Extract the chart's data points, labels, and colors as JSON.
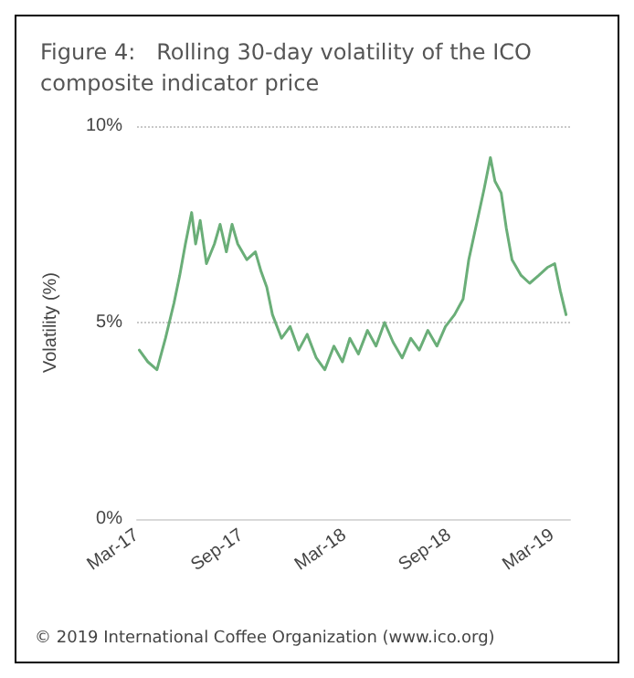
{
  "chart_data": {
    "type": "line",
    "title": "Figure 4:   Rolling 30-day volatility of the ICO composite indicator price",
    "ylabel": "Volatility (%)",
    "annotations": [
      "© 2019 International Coffee Organization (www.ico.org)"
    ],
    "series": [
      {
        "color": "#6aae78",
        "x": [
          "2017-03-05",
          "2017-03-20",
          "2017-04-05",
          "2017-04-20",
          "2017-05-05",
          "2017-05-15",
          "2017-05-25",
          "2017-06-05",
          "2017-06-12",
          "2017-06-20",
          "2017-07-01",
          "2017-07-15",
          "2017-07-25",
          "2017-08-05",
          "2017-08-15",
          "2017-08-25",
          "2017-09-10",
          "2017-09-25",
          "2017-10-05",
          "2017-10-15",
          "2017-10-25",
          "2017-11-10",
          "2017-11-25",
          "2017-12-10",
          "2017-12-25",
          "2018-01-10",
          "2018-01-25",
          "2018-02-10",
          "2018-02-25",
          "2018-03-10",
          "2018-03-25",
          "2018-04-10",
          "2018-04-25",
          "2018-05-10",
          "2018-05-25",
          "2018-06-10",
          "2018-06-25",
          "2018-07-10",
          "2018-07-25",
          "2018-08-10",
          "2018-08-25",
          "2018-09-10",
          "2018-09-25",
          "2018-10-05",
          "2018-10-20",
          "2018-11-01",
          "2018-11-12",
          "2018-11-20",
          "2018-12-01",
          "2018-12-10",
          "2018-12-20",
          "2019-01-05",
          "2019-01-20",
          "2019-02-05",
          "2019-02-20",
          "2019-03-05",
          "2019-03-15",
          "2019-03-25"
        ],
        "values": [
          4.3,
          4.0,
          3.8,
          4.6,
          5.5,
          6.2,
          7.0,
          7.8,
          7.0,
          7.6,
          6.5,
          7.0,
          7.5,
          6.8,
          7.5,
          7.0,
          6.6,
          6.8,
          6.3,
          5.9,
          5.2,
          4.6,
          4.9,
          4.3,
          4.7,
          4.1,
          3.8,
          4.4,
          4.0,
          4.6,
          4.2,
          4.8,
          4.4,
          5.0,
          4.5,
          4.1,
          4.6,
          4.3,
          4.8,
          4.4,
          4.9,
          5.2,
          5.6,
          6.6,
          7.6,
          8.4,
          9.2,
          8.6,
          8.3,
          7.4,
          6.6,
          6.2,
          6.0,
          6.2,
          6.4,
          6.5,
          5.8,
          5.2
        ]
      }
    ],
    "xlim": [
      "2017-03-01",
      "2019-04-01"
    ],
    "xticks": [
      {
        "value": "2017-03-01",
        "label": "Mar-17"
      },
      {
        "value": "2017-09-01",
        "label": "Sep-17"
      },
      {
        "value": "2018-03-01",
        "label": "Mar-18"
      },
      {
        "value": "2018-09-01",
        "label": "Sep-18"
      },
      {
        "value": "2019-03-01",
        "label": "Mar-19"
      }
    ],
    "ylim": [
      0,
      10
    ],
    "yticks": [
      {
        "value": 0,
        "label": "0%"
      },
      {
        "value": 5,
        "label": "5%"
      },
      {
        "value": 10,
        "label": "10%"
      }
    ],
    "grid": "y",
    "line_style": "solid",
    "marker": "none"
  }
}
